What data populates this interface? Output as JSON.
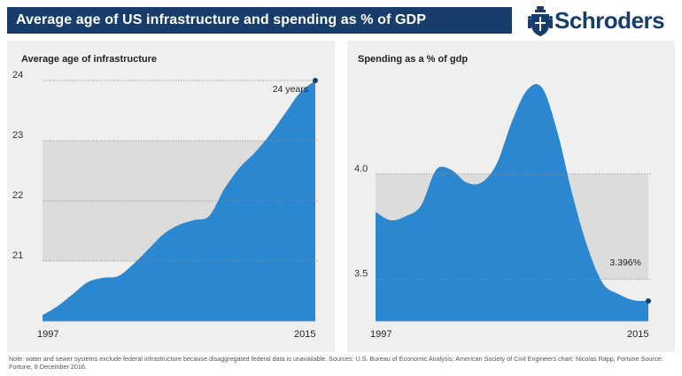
{
  "header": {
    "title": "Average age of US infrastructure and spending as % of GDP",
    "brand": "Schroders"
  },
  "colors": {
    "header_bg": "#173d6c",
    "area_fill": "#2b88d0",
    "band_fill": "#dcdcdc",
    "panel_bg": "#efefef",
    "marker": "#173d6c"
  },
  "icons": {
    "logo": "schroders-crest-icon"
  },
  "chart_data": [
    {
      "type": "area",
      "title": "Average age of infrastructure",
      "x_tick_labels": [
        "1997",
        "2015"
      ],
      "y_ticks": [
        21,
        22,
        23,
        24
      ],
      "ylim": [
        20,
        24
      ],
      "x": [
        1997,
        1998,
        1999,
        2000,
        2001,
        2002,
        2003,
        2004,
        2005,
        2006,
        2007,
        2008,
        2009,
        2010,
        2011,
        2012,
        2013,
        2014,
        2015
      ],
      "values": [
        20.1,
        20.25,
        20.45,
        20.65,
        20.72,
        20.75,
        20.95,
        21.2,
        21.45,
        21.6,
        21.68,
        21.75,
        22.2,
        22.55,
        22.8,
        23.1,
        23.45,
        23.8,
        24.0
      ],
      "annotation": {
        "x": 2015,
        "y": 24.0,
        "label": "24 years"
      },
      "grid_bands": [
        [
          21,
          22
        ],
        [
          22,
          23
        ]
      ],
      "legend": "none"
    },
    {
      "type": "area",
      "title": "Spending as a % of gdp",
      "x_tick_labels": [
        "1997",
        "2015"
      ],
      "y_ticks": [
        3.5,
        4.0
      ],
      "ylim": [
        3.3,
        4.5
      ],
      "x": [
        1997,
        1998,
        1999,
        2000,
        2001,
        2002,
        2003,
        2004,
        2005,
        2006,
        2007,
        2008,
        2009,
        2010,
        2011,
        2012,
        2013,
        2014,
        2015
      ],
      "values": [
        3.82,
        3.78,
        3.8,
        3.85,
        4.02,
        4.02,
        3.96,
        3.96,
        4.05,
        4.25,
        4.4,
        4.41,
        4.2,
        3.9,
        3.65,
        3.48,
        3.43,
        3.4,
        3.396
      ],
      "annotation": {
        "x": 2015,
        "y": 3.396,
        "label": "3.396%"
      },
      "grid_bands": [
        [
          3.5,
          4.0
        ]
      ],
      "legend": "none"
    }
  ],
  "note": "Note: water and sewer systems exclude federal infrastructure because disaggregated federal data is unavailable. Sources: U.S. Bureau of Economic Analysis; American Society of Civil Engineers chart: Nicolas Rapp, Fortune Source: Fortune, 8 December 2016."
}
